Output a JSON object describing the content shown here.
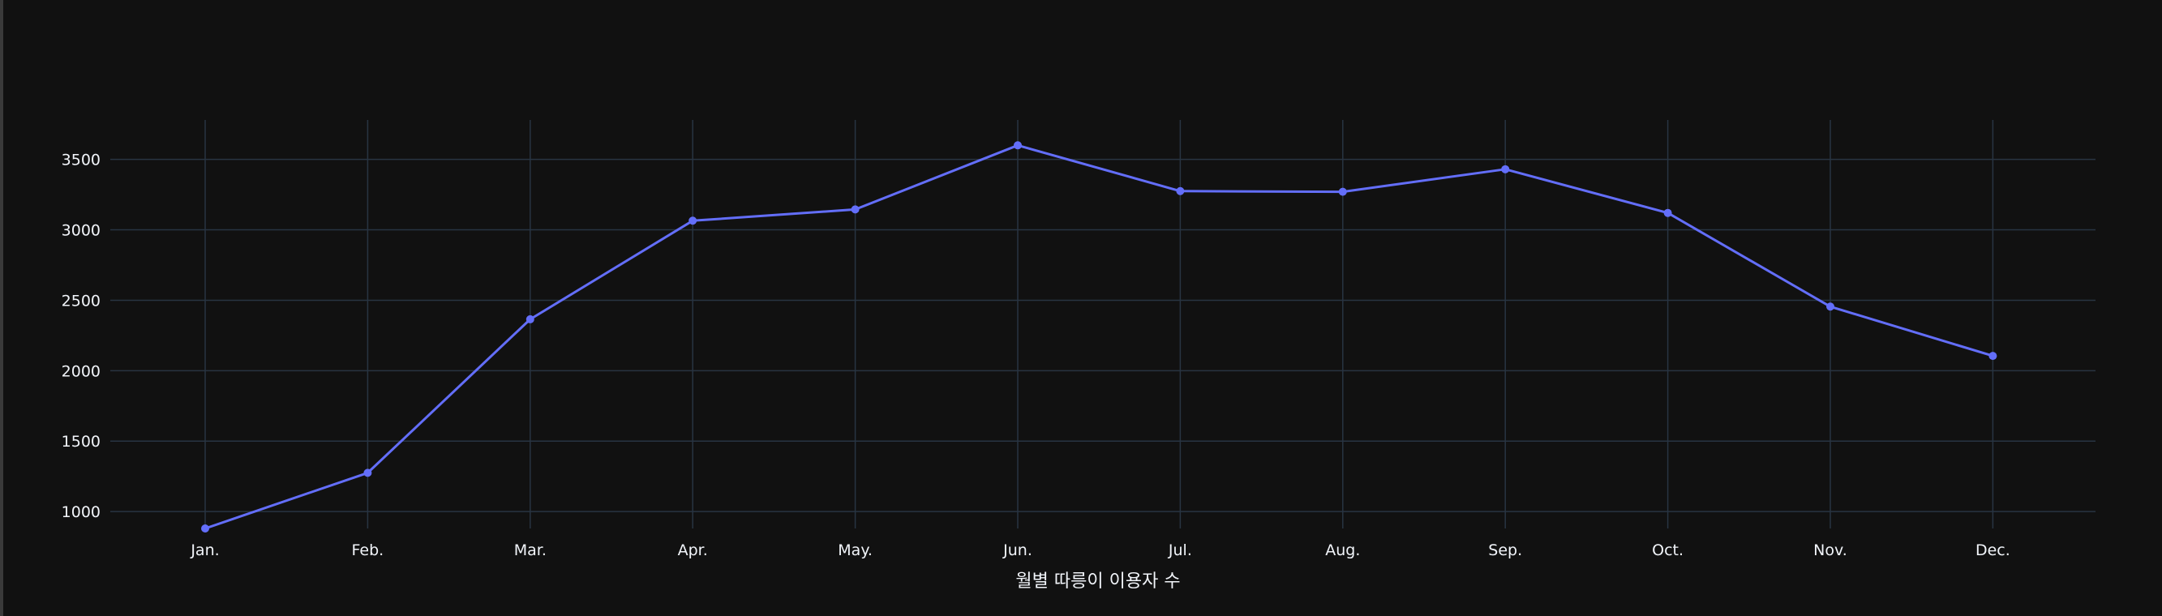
{
  "chart_data": {
    "type": "line",
    "title": "",
    "xlabel": "월별 따릉이 이용자 수",
    "ylabel": "",
    "categories": [
      "Jan.",
      "Feb.",
      "Mar.",
      "Apr.",
      "May.",
      "Jun.",
      "Jul.",
      "Aug.",
      "Sep.",
      "Oct.",
      "Nov.",
      "Dec."
    ],
    "series": [
      {
        "values": [
          880,
          1275,
          2365,
          3065,
          3145,
          3600,
          3275,
          3270,
          3430,
          3120,
          2455,
          2105
        ],
        "color": "#636efa"
      }
    ],
    "ylim": [
      880,
      3780
    ],
    "yticks": [
      1000,
      1500,
      2000,
      2500,
      3000,
      3500
    ],
    "ytick_labels": [
      "1000",
      "1500",
      "2000",
      "2500",
      "3000",
      "3500"
    ],
    "grid": true,
    "legend": "none",
    "colors": {
      "background": "#111111",
      "grid": "#283442",
      "text": "#f2f5fa",
      "line": "#636efa"
    }
  }
}
